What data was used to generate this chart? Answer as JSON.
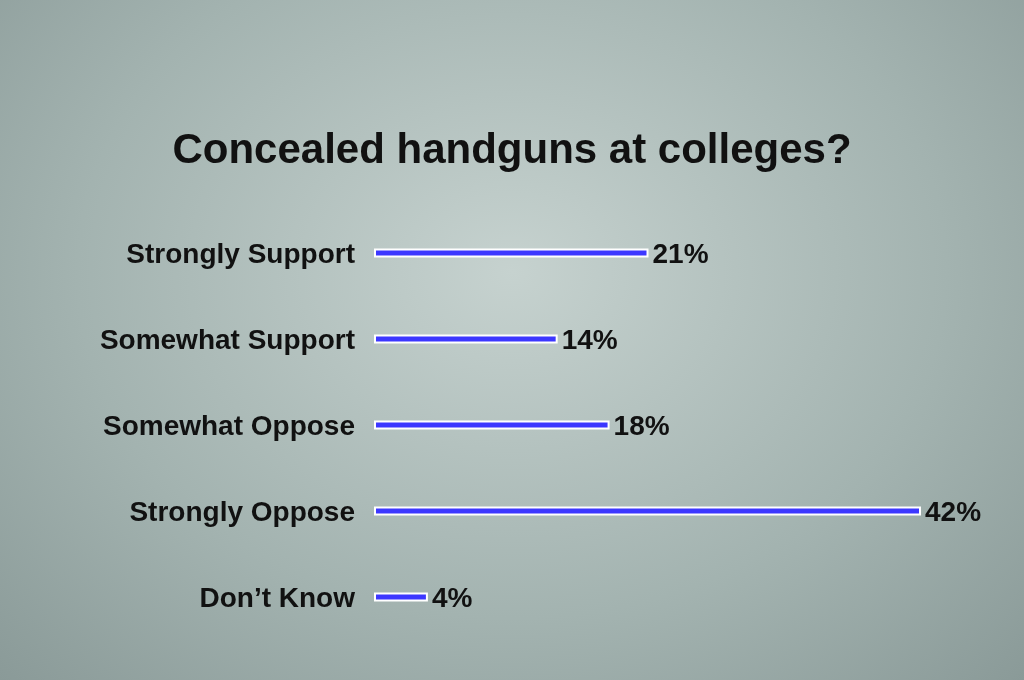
{
  "chart_data": {
    "type": "bar",
    "orientation": "horizontal",
    "title": "Concealed handguns at colleges?",
    "categories": [
      "Strongly Support",
      "Somewhat Support",
      "Somewhat Oppose",
      "Strongly Oppose",
      "Don’t Know"
    ],
    "values": [
      21,
      14,
      18,
      42,
      4
    ],
    "color": "#3c37ff",
    "value_labels": [
      "21%",
      "14%",
      "18%",
      "42%",
      "4%"
    ]
  }
}
